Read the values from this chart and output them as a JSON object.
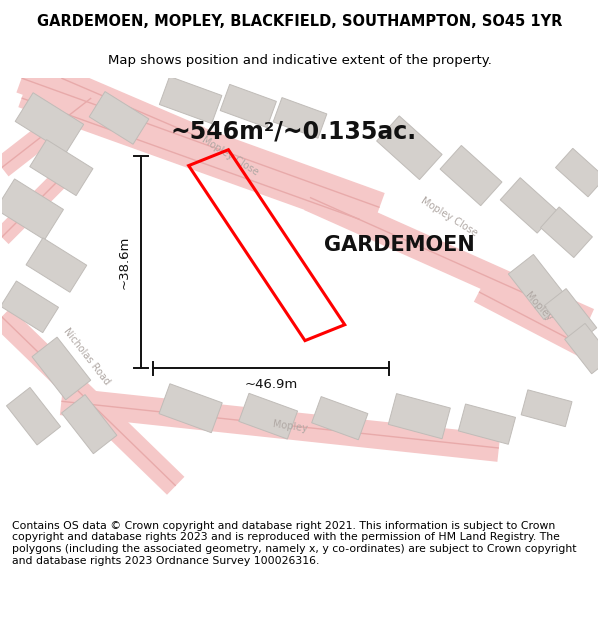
{
  "title": "GARDEMOEN, MOPLEY, BLACKFIELD, SOUTHAMPTON, SO45 1YR",
  "subtitle": "Map shows position and indicative extent of the property.",
  "area_text": "~546m²/~0.135ac.",
  "property_label": "GARDEMOEN",
  "dim_width": "~46.9m",
  "dim_height": "~38.6m",
  "footer": "Contains OS data © Crown copyright and database right 2021. This information is subject to Crown copyright and database rights 2023 and is reproduced with the permission of HM Land Registry. The polygons (including the associated geometry, namely x, y co-ordinates) are subject to Crown copyright and database rights 2023 Ordnance Survey 100026316.",
  "bg_color": "#f0eeec",
  "road_fill": "#f5c8c8",
  "road_edge": "#e8aaaa",
  "building_fill": "#d4d0cc",
  "building_edge": "#c0bcb8",
  "plot_color": "#ff0000",
  "dim_color": "#111111",
  "text_color": "#111111",
  "street_label_color": "#b0a8a4",
  "title_fontsize": 10.5,
  "subtitle_fontsize": 9.5,
  "footer_fontsize": 7.8,
  "area_fontsize": 17,
  "label_fontsize": 15,
  "dim_fontsize": 9.5,
  "street_fontsize": 7
}
